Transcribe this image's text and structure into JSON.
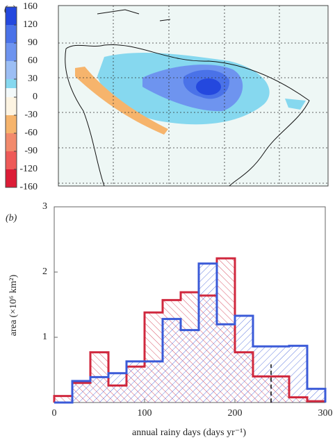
{
  "panel_a": {
    "label": "(a)",
    "colorbar": {
      "ticks": [
        160,
        120,
        90,
        60,
        30,
        0,
        -30,
        -60,
        -90,
        -120,
        -160
      ],
      "colors": [
        "#2448de",
        "#4a72e8",
        "#6e94ef",
        "#9cbef4",
        "#86d8ef",
        "#f3f9fa",
        "#fdf4e2",
        "#f6b46c",
        "#f28a6c",
        "#ee5a58",
        "#dc1c36"
      ]
    }
  },
  "chart_data": {
    "type": "histogram",
    "label": "(b)",
    "xlabel": "annual rainy days (days yr⁻¹)",
    "ylabel": "area (×10⁶ km²)",
    "bins": [
      0,
      20,
      40,
      60,
      80,
      100,
      120,
      140,
      160,
      180,
      200,
      220,
      240,
      260,
      280,
      300
    ],
    "series": [
      {
        "color": "#d0283e",
        "values": [
          0.1,
          0.3,
          0.77,
          0.26,
          0.55,
          1.38,
          1.57,
          1.69,
          1.64,
          2.21,
          0.77,
          0.4,
          0.4,
          0.08,
          0.02
        ]
      },
      {
        "color": "#3a5ad8",
        "values": [
          0,
          0.33,
          0.39,
          0.45,
          0.63,
          0.63,
          1.28,
          1.11,
          2.13,
          1.2,
          1.33,
          0.86,
          0.86,
          0.87,
          0.21
        ]
      }
    ],
    "xlim": [
      0,
      300
    ],
    "ylim": [
      0,
      3
    ],
    "xticks": [
      0,
      100,
      200,
      300
    ],
    "yticks": [
      1,
      2,
      3
    ],
    "vline": 240
  }
}
